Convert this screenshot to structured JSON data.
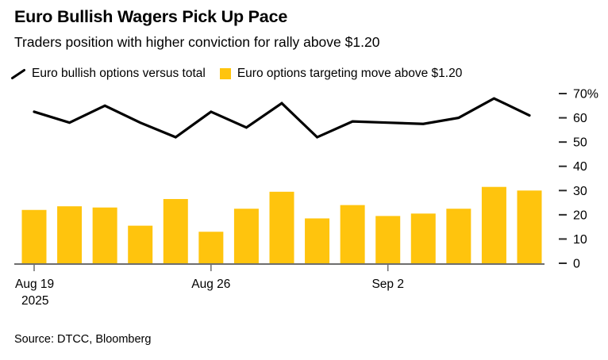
{
  "header": {
    "title": "Euro Bullish Wagers Pick Up Pace",
    "subtitle": "Traders position with higher conviction for rally above $1.20"
  },
  "legend": {
    "items": [
      {
        "label": "Euro bullish options versus total",
        "marker": "line-icon",
        "color": "#000000"
      },
      {
        "label": "Euro options targeting move above $1.20",
        "marker": "square-icon",
        "color": "#FFC40D"
      }
    ]
  },
  "source": "Source: DTCC, Bloomberg",
  "colors": {
    "bar": "#FFC40D",
    "line": "#000000",
    "axis": "#6E6E6E",
    "tick_dash": "#2B2B2B",
    "text": "#000000"
  },
  "chart_data": {
    "type": "combo-bar-line",
    "title": "Euro Bullish Wagers Pick Up Pace",
    "subtitle": "Traders position with higher conviction for rally above $1.20",
    "n_points": 15,
    "x_tick_labels": [
      {
        "index": 0,
        "label": "Aug 19",
        "sublabel": "2025"
      },
      {
        "index": 5,
        "label": "Aug 26"
      },
      {
        "index": 10,
        "label": "Sep 2"
      }
    ],
    "y_ticks": [
      {
        "value": 0,
        "label": "0"
      },
      {
        "value": 10,
        "label": "10"
      },
      {
        "value": 20,
        "label": "20"
      },
      {
        "value": 30,
        "label": "30"
      },
      {
        "value": 40,
        "label": "40"
      },
      {
        "value": 50,
        "label": "50"
      },
      {
        "value": 60,
        "label": "60"
      },
      {
        "value": 70,
        "label": "70%"
      }
    ],
    "ylim": [
      0,
      70
    ],
    "grid": false,
    "legend_position": "top-left",
    "series": [
      {
        "name": "Euro bullish options versus total",
        "type": "line",
        "unit": "%",
        "values": [
          62.5,
          58,
          65,
          58,
          52,
          62.5,
          56,
          66,
          52,
          58.5,
          58,
          57.5,
          60,
          68,
          61
        ]
      },
      {
        "name": "Euro options targeting move above $1.20",
        "type": "bar",
        "unit": "%",
        "values": [
          22,
          23.5,
          23,
          15.5,
          26.5,
          13,
          22.5,
          29.5,
          18.5,
          24,
          19.5,
          20.5,
          22.5,
          31.5,
          30
        ]
      }
    ]
  }
}
